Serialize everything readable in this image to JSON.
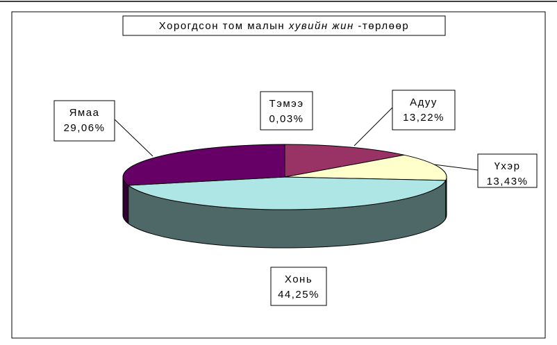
{
  "chart_data": {
    "type": "pie",
    "title_parts": [
      "Хорогдсон том малын",
      "хувийн жин",
      "-төрлөөр"
    ],
    "categories": [
      "Адуу",
      "Үхэр",
      "Хонь",
      "Ямаа",
      "Тэмээ"
    ],
    "values": [
      13.22,
      13.43,
      44.25,
      29.06,
      0.03
    ],
    "value_labels": [
      "13,22%",
      "13,43%",
      "44,25%",
      "29,06%",
      "0,03%"
    ],
    "colors": [
      "#993366",
      "#ffffcc",
      "#aee6e6",
      "#660066",
      "#ff8080"
    ]
  }
}
